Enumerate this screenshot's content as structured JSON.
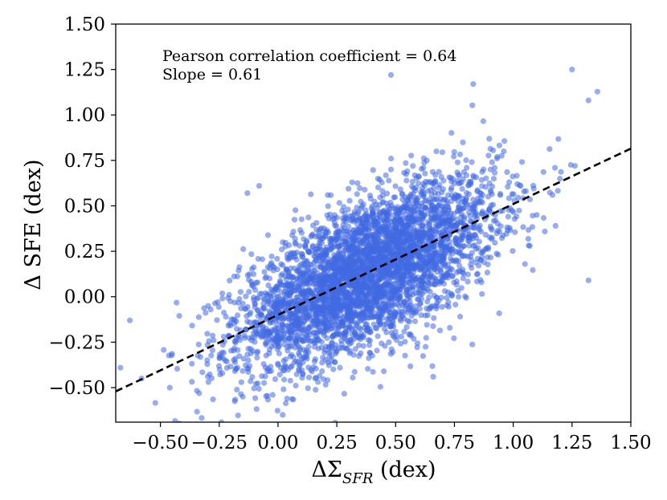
{
  "chart_data": {
    "type": "scatter",
    "xlabel": "ΔΣ",
    "xlabel_subscript": "SFR",
    "xlabel_suffix": " (dex)",
    "ylabel": "Δ SFE (dex)",
    "xlim": [
      -0.69,
      1.5
    ],
    "ylim": [
      -0.69,
      1.5
    ],
    "xticks": [
      -0.5,
      -0.25,
      0.0,
      0.25,
      0.5,
      0.75,
      1.0,
      1.25,
      1.5
    ],
    "xtick_labels": [
      "−0.50",
      "−0.25",
      "0.00",
      "0.25",
      "0.50",
      "0.75",
      "1.00",
      "1.25",
      "1.50"
    ],
    "yticks": [
      -0.5,
      -0.25,
      0.0,
      0.25,
      0.5,
      0.75,
      1.0,
      1.25,
      1.5
    ],
    "ytick_labels": [
      "−0.50",
      "−0.25",
      "0.00",
      "0.25",
      "0.50",
      "0.75",
      "1.00",
      "1.25",
      "1.50"
    ],
    "annotations": [
      "Pearson correlation coefficient = 0.64",
      "Slope = 0.61"
    ],
    "fit_line": {
      "slope": 0.61,
      "intercept": -0.1,
      "style": "dashed",
      "color": "#000000"
    },
    "point_color": "#4169e1",
    "point_count": 4200,
    "point_distribution": {
      "x_mean": 0.38,
      "x_sd": 0.27,
      "y_mean": 0.13,
      "y_sd": 0.25,
      "correlation": 0.64
    },
    "notable_points": [
      {
        "x": 0.48,
        "y": 1.22
      },
      {
        "x": 1.25,
        "y": 1.25
      },
      {
        "x": 1.32,
        "y": 1.08
      },
      {
        "x": 1.32,
        "y": 0.09
      },
      {
        "x": 0.83,
        "y": 1.17
      },
      {
        "x": -0.67,
        "y": -0.39
      },
      {
        "x": -0.63,
        "y": -0.13
      },
      {
        "x": -0.58,
        "y": -0.45
      },
      {
        "x": -0.46,
        "y": -0.5
      },
      {
        "x": -0.24,
        "y": -0.69
      },
      {
        "x": -0.08,
        "y": 0.61
      },
      {
        "x": -0.13,
        "y": 0.57
      },
      {
        "x": 0.66,
        "y": -0.44
      },
      {
        "x": 0.02,
        "y": -0.65
      },
      {
        "x": 0.45,
        "y": -0.41
      },
      {
        "x": 1.18,
        "y": 0.39
      },
      {
        "x": 1.1,
        "y": 0.45
      },
      {
        "x": 0.96,
        "y": 0.8
      },
      {
        "x": -0.15,
        "y": -0.55
      },
      {
        "x": 1.05,
        "y": 0.18
      }
    ]
  }
}
